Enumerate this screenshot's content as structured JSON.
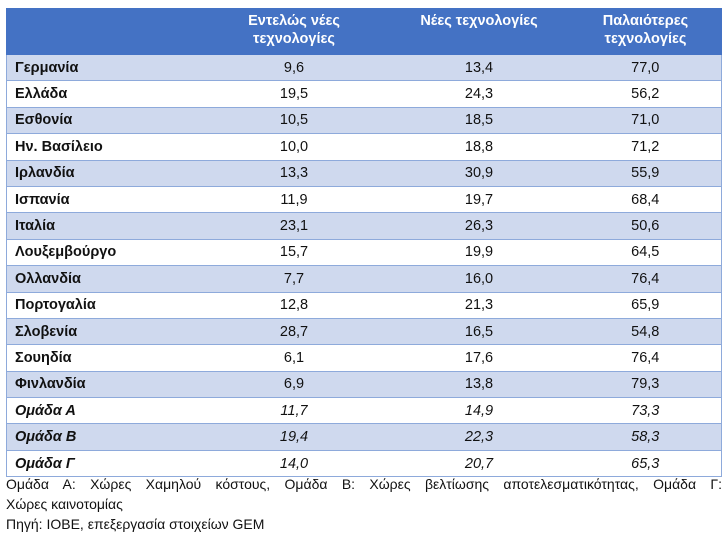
{
  "table": {
    "headers": [
      "",
      "Εντελώς νέες τεχνολογίες",
      "Νέες τεχνολογίες",
      "Παλαιότερες τεχνολογίες"
    ],
    "header_lines": [
      [
        "Εντελώς νέες",
        "τεχνολογίες"
      ],
      [
        "Νέες τεχνολογίες",
        ""
      ],
      [
        "Παλαιότερες",
        "τεχνολογίες"
      ]
    ],
    "rows": [
      [
        "Γερμανία",
        "9,6",
        "13,4",
        "77,0"
      ],
      [
        "Ελλάδα",
        "19,5",
        "24,3",
        "56,2"
      ],
      [
        "Εσθονία",
        "10,5",
        "18,5",
        "71,0"
      ],
      [
        "Ην. Βασίλειο",
        "10,0",
        "18,8",
        "71,2"
      ],
      [
        "Ιρλανδία",
        "13,3",
        "30,9",
        "55,9"
      ],
      [
        "Ισπανία",
        "11,9",
        "19,7",
        "68,4"
      ],
      [
        "Ιταλία",
        "23,1",
        "26,3",
        "50,6"
      ],
      [
        "Λουξεμβούργο",
        "15,7",
        "19,9",
        "64,5"
      ],
      [
        "Ολλανδία",
        "7,7",
        "16,0",
        "76,4"
      ],
      [
        "Πορτογαλία",
        "12,8",
        "21,3",
        "65,9"
      ],
      [
        "Σλοβενία",
        "28,7",
        "16,5",
        "54,8"
      ],
      [
        "Σουηδία",
        "6,1",
        "17,6",
        "76,4"
      ],
      [
        "Φινλανδία",
        "6,9",
        "13,8",
        "79,3"
      ]
    ],
    "group_rows": [
      [
        "Ομάδα Α",
        "11,7",
        "14,9",
        "73,3"
      ],
      [
        "Ομάδα Β",
        "19,4",
        "22,3",
        "58,3"
      ],
      [
        "Ομάδα Γ",
        "14,0",
        "20,7",
        "65,3"
      ]
    ]
  },
  "notes": {
    "line1": "Ομάδα Α: Χώρες Χαμηλού κόστους, Ομάδα Β: Χώρες βελτίωσης αποτελεσματικότητας, Ομάδα Γ:",
    "line2": "Χώρες καινοτομίας",
    "source": "Πηγή: ΙΟΒΕ, επεξεργασία στοιχείων GEM"
  },
  "colors": {
    "header": "#4472c4",
    "band": "#cfd9ee",
    "border": "#8eaadb"
  }
}
